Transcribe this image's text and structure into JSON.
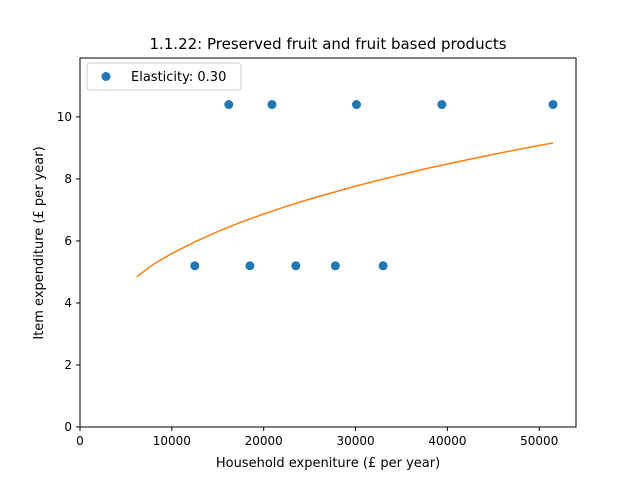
{
  "chart_data": {
    "type": "scatter",
    "title": "1.1.22: Preserved fruit and fruit based products",
    "xlabel": "Household expeniture (£ per year)",
    "ylabel": "Item expenditure (£ per year)",
    "xlim": [
      0,
      54000
    ],
    "ylim": [
      0,
      11.9
    ],
    "xticks": [
      0,
      10000,
      20000,
      30000,
      40000,
      50000
    ],
    "yticks": [
      0,
      2,
      4,
      6,
      8,
      10
    ],
    "grid": false,
    "legend_position": "upper-left",
    "series": [
      {
        "name": "Elasticity: 0.30",
        "kind": "scatter",
        "color": "#1f77b4",
        "points": [
          {
            "x": 12500,
            "y": 5.2
          },
          {
            "x": 16200,
            "y": 10.4
          },
          {
            "x": 18500,
            "y": 5.2
          },
          {
            "x": 20900,
            "y": 10.4
          },
          {
            "x": 23500,
            "y": 5.2
          },
          {
            "x": 27800,
            "y": 5.2
          },
          {
            "x": 30100,
            "y": 10.4
          },
          {
            "x": 33000,
            "y": 5.2
          },
          {
            "x": 39400,
            "y": 10.4
          },
          {
            "x": 51500,
            "y": 10.4
          }
        ]
      },
      {
        "kind": "line",
        "color": "#ff7f0e",
        "points": [
          {
            "x": 6200,
            "y": 4.85
          },
          {
            "x": 8000,
            "y": 5.25
          },
          {
            "x": 10000,
            "y": 5.6
          },
          {
            "x": 12500,
            "y": 5.97
          },
          {
            "x": 15000,
            "y": 6.3
          },
          {
            "x": 17500,
            "y": 6.6
          },
          {
            "x": 20000,
            "y": 6.87
          },
          {
            "x": 22500,
            "y": 7.12
          },
          {
            "x": 25000,
            "y": 7.35
          },
          {
            "x": 27500,
            "y": 7.56
          },
          {
            "x": 30000,
            "y": 7.77
          },
          {
            "x": 32500,
            "y": 7.96
          },
          {
            "x": 35000,
            "y": 8.14
          },
          {
            "x": 37500,
            "y": 8.32
          },
          {
            "x": 40000,
            "y": 8.48
          },
          {
            "x": 42500,
            "y": 8.64
          },
          {
            "x": 45000,
            "y": 8.79
          },
          {
            "x": 47500,
            "y": 8.94
          },
          {
            "x": 50000,
            "y": 9.08
          },
          {
            "x": 51500,
            "y": 9.16
          }
        ]
      }
    ]
  }
}
